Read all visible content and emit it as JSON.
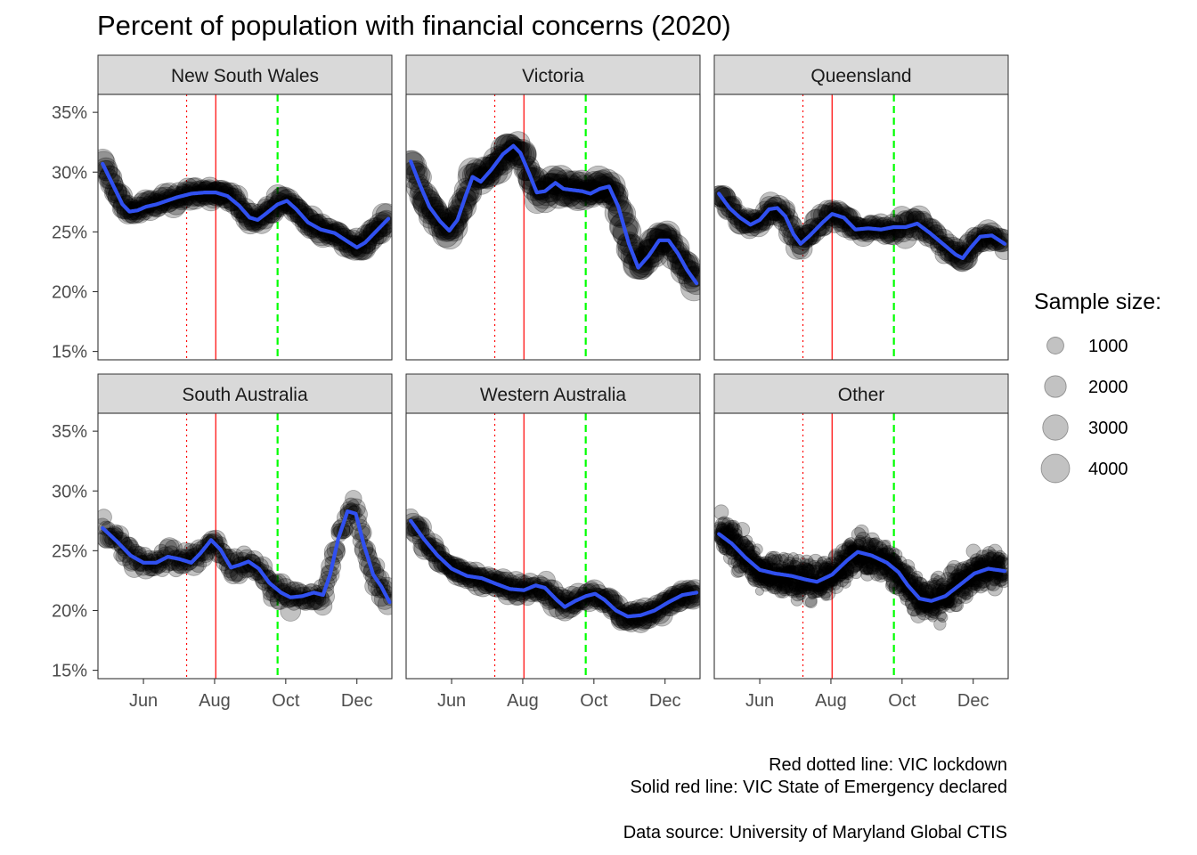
{
  "chart_data": {
    "type": "scatter",
    "title": "Percent of population with financial concerns (2020)",
    "xlabel": "",
    "ylabel": "",
    "x_ticks": [
      "Jun",
      "Aug",
      "Oct",
      "Dec"
    ],
    "x_tick_dates": [
      "2020-06-01",
      "2020-08-01",
      "2020-10-01",
      "2020-12-01"
    ],
    "xlim": [
      "2020-04-23",
      "2020-12-31"
    ],
    "y_ticks": [
      "15%",
      "20%",
      "25%",
      "30%",
      "35%"
    ],
    "y_tick_values": [
      15,
      20,
      25,
      30,
      35
    ],
    "ylim": [
      14.3,
      36.5
    ],
    "grid": false,
    "reference_lines": [
      {
        "date": "2020-07-08",
        "color": "#ff0000",
        "style": "dotted"
      },
      {
        "date": "2020-08-02",
        "color": "#ff0000",
        "style": "solid"
      },
      {
        "date": "2020-09-24",
        "color": "#00ff00",
        "style": "dashed"
      }
    ],
    "legend": {
      "title": "Sample size:",
      "position": "right",
      "entries": [
        {
          "label": "1000",
          "value": 1000
        },
        {
          "label": "2000",
          "value": 2000
        },
        {
          "label": "3000",
          "value": 3000
        },
        {
          "label": "4000",
          "value": 4000
        }
      ]
    },
    "captions": [
      "Red dotted line: VIC lockdown",
      "Solid red line: VIC State of Emergency declared",
      "Data source: University of Maryland Global CTIS"
    ],
    "point_color": "#000000",
    "smooth_color": "#3050f0",
    "panels": [
      {
        "name": "New South Wales",
        "smooth": [
          [
            "2020-04-27",
            30.7
          ],
          [
            "2020-05-06",
            28.9
          ],
          [
            "2020-05-14",
            27.3
          ],
          [
            "2020-05-20",
            26.7
          ],
          [
            "2020-05-27",
            26.8
          ],
          [
            "2020-06-03",
            27.1
          ],
          [
            "2020-06-12",
            27.3
          ],
          [
            "2020-06-21",
            27.6
          ],
          [
            "2020-06-30",
            27.9
          ],
          [
            "2020-07-12",
            28.2
          ],
          [
            "2020-07-24",
            28.3
          ],
          [
            "2020-08-02",
            28.3
          ],
          [
            "2020-08-12",
            28.0
          ],
          [
            "2020-08-22",
            27.2
          ],
          [
            "2020-08-31",
            26.2
          ],
          [
            "2020-09-07",
            26.0
          ],
          [
            "2020-09-15",
            26.6
          ],
          [
            "2020-09-24",
            27.3
          ],
          [
            "2020-10-02",
            27.6
          ],
          [
            "2020-10-10",
            26.9
          ],
          [
            "2020-10-20",
            25.8
          ],
          [
            "2020-10-31",
            25.2
          ],
          [
            "2020-11-12",
            24.9
          ],
          [
            "2020-11-23",
            24.2
          ],
          [
            "2020-12-01",
            23.7
          ],
          [
            "2020-12-08",
            24.1
          ],
          [
            "2020-12-15",
            24.8
          ],
          [
            "2020-12-22",
            25.5
          ],
          [
            "2020-12-28",
            26.1
          ]
        ],
        "amp": 1.0,
        "size_range": [
          900,
          2800
        ],
        "points_per_week": 7
      },
      {
        "name": "Victoria",
        "smooth": [
          [
            "2020-04-27",
            30.9
          ],
          [
            "2020-05-05",
            28.9
          ],
          [
            "2020-05-13",
            27.1
          ],
          [
            "2020-05-22",
            25.9
          ],
          [
            "2020-05-30",
            25.1
          ],
          [
            "2020-06-06",
            26.0
          ],
          [
            "2020-06-13",
            28.0
          ],
          [
            "2020-06-19",
            29.6
          ],
          [
            "2020-06-26",
            29.2
          ],
          [
            "2020-07-05",
            30.2
          ],
          [
            "2020-07-15",
            31.5
          ],
          [
            "2020-07-24",
            32.2
          ],
          [
            "2020-07-30",
            31.6
          ],
          [
            "2020-08-06",
            30.0
          ],
          [
            "2020-08-13",
            28.3
          ],
          [
            "2020-08-20",
            28.4
          ],
          [
            "2020-08-29",
            29.1
          ],
          [
            "2020-09-05",
            28.6
          ],
          [
            "2020-09-13",
            28.5
          ],
          [
            "2020-09-21",
            28.4
          ],
          [
            "2020-09-28",
            28.2
          ],
          [
            "2020-10-06",
            28.6
          ],
          [
            "2020-10-14",
            28.8
          ],
          [
            "2020-10-22",
            27.1
          ],
          [
            "2020-10-31",
            24.0
          ],
          [
            "2020-11-08",
            22.0
          ],
          [
            "2020-11-17",
            23.0
          ],
          [
            "2020-11-26",
            24.3
          ],
          [
            "2020-12-04",
            24.3
          ],
          [
            "2020-12-12",
            23.2
          ],
          [
            "2020-12-20",
            21.8
          ],
          [
            "2020-12-28",
            20.7
          ]
        ],
        "amp": 1.3,
        "size_range": [
          1200,
          4200
        ],
        "points_per_week": 7
      },
      {
        "name": "Queensland",
        "smooth": [
          [
            "2020-04-27",
            28.2
          ],
          [
            "2020-05-06",
            27.0
          ],
          [
            "2020-05-15",
            26.2
          ],
          [
            "2020-05-24",
            25.6
          ],
          [
            "2020-06-01",
            26.0
          ],
          [
            "2020-06-09",
            26.9
          ],
          [
            "2020-06-16",
            27.0
          ],
          [
            "2020-06-23",
            26.3
          ],
          [
            "2020-06-30",
            24.8
          ],
          [
            "2020-07-06",
            24.0
          ],
          [
            "2020-07-14",
            24.7
          ],
          [
            "2020-07-25",
            25.8
          ],
          [
            "2020-08-02",
            26.5
          ],
          [
            "2020-08-12",
            26.2
          ],
          [
            "2020-08-22",
            25.2
          ],
          [
            "2020-09-02",
            25.3
          ],
          [
            "2020-09-13",
            25.2
          ],
          [
            "2020-09-24",
            25.4
          ],
          [
            "2020-10-04",
            25.4
          ],
          [
            "2020-10-14",
            25.7
          ],
          [
            "2020-10-25",
            24.9
          ],
          [
            "2020-11-05",
            24.0
          ],
          [
            "2020-11-16",
            23.1
          ],
          [
            "2020-11-22",
            22.8
          ],
          [
            "2020-11-29",
            23.7
          ],
          [
            "2020-12-07",
            24.6
          ],
          [
            "2020-12-17",
            24.7
          ],
          [
            "2020-12-28",
            24.0
          ]
        ],
        "amp": 1.2,
        "size_range": [
          700,
          2500
        ],
        "points_per_week": 7
      },
      {
        "name": "South Australia",
        "smooth": [
          [
            "2020-04-27",
            26.9
          ],
          [
            "2020-05-09",
            25.8
          ],
          [
            "2020-05-21",
            24.6
          ],
          [
            "2020-06-01",
            24.0
          ],
          [
            "2020-06-12",
            24.0
          ],
          [
            "2020-06-22",
            24.5
          ],
          [
            "2020-07-02",
            24.3
          ],
          [
            "2020-07-12",
            24.0
          ],
          [
            "2020-07-20",
            24.8
          ],
          [
            "2020-07-29",
            25.9
          ],
          [
            "2020-08-06",
            25.1
          ],
          [
            "2020-08-15",
            23.6
          ],
          [
            "2020-08-22",
            23.8
          ],
          [
            "2020-08-30",
            24.1
          ],
          [
            "2020-09-08",
            23.5
          ],
          [
            "2020-09-17",
            22.3
          ],
          [
            "2020-09-27",
            21.5
          ],
          [
            "2020-10-05",
            21.1
          ],
          [
            "2020-10-15",
            21.2
          ],
          [
            "2020-10-25",
            21.5
          ],
          [
            "2020-11-02",
            21.3
          ],
          [
            "2020-11-08",
            23.0
          ],
          [
            "2020-11-15",
            26.0
          ],
          [
            "2020-11-23",
            28.3
          ],
          [
            "2020-11-30",
            28.1
          ],
          [
            "2020-12-07",
            25.5
          ],
          [
            "2020-12-15",
            23.0
          ],
          [
            "2020-12-22",
            22.0
          ],
          [
            "2020-12-29",
            20.7
          ]
        ],
        "amp": 1.6,
        "size_range": [
          400,
          1800
        ],
        "points_per_week": 7
      },
      {
        "name": "Western Australia",
        "smooth": [
          [
            "2020-04-27",
            27.5
          ],
          [
            "2020-05-08",
            26.0
          ],
          [
            "2020-05-20",
            24.6
          ],
          [
            "2020-06-01",
            23.5
          ],
          [
            "2020-06-14",
            22.9
          ],
          [
            "2020-06-27",
            22.7
          ],
          [
            "2020-07-10",
            22.2
          ],
          [
            "2020-07-21",
            21.8
          ],
          [
            "2020-08-02",
            21.7
          ],
          [
            "2020-08-12",
            22.1
          ],
          [
            "2020-08-20",
            21.9
          ],
          [
            "2020-08-30",
            20.9
          ],
          [
            "2020-09-06",
            20.3
          ],
          [
            "2020-09-15",
            20.8
          ],
          [
            "2020-09-24",
            21.2
          ],
          [
            "2020-10-02",
            21.4
          ],
          [
            "2020-10-10",
            20.9
          ],
          [
            "2020-10-20",
            20.0
          ],
          [
            "2020-10-30",
            19.5
          ],
          [
            "2020-11-10",
            19.6
          ],
          [
            "2020-11-22",
            20.0
          ],
          [
            "2020-12-04",
            20.7
          ],
          [
            "2020-12-16",
            21.3
          ],
          [
            "2020-12-28",
            21.5
          ]
        ],
        "amp": 1.1,
        "size_range": [
          800,
          2500
        ],
        "points_per_week": 7
      },
      {
        "name": "Other",
        "smooth": [
          [
            "2020-04-27",
            26.4
          ],
          [
            "2020-05-08",
            25.6
          ],
          [
            "2020-05-20",
            24.4
          ],
          [
            "2020-06-01",
            23.4
          ],
          [
            "2020-06-14",
            23.1
          ],
          [
            "2020-06-28",
            22.9
          ],
          [
            "2020-07-10",
            22.6
          ],
          [
            "2020-07-20",
            22.4
          ],
          [
            "2020-08-02",
            23.0
          ],
          [
            "2020-08-15",
            24.2
          ],
          [
            "2020-08-24",
            24.9
          ],
          [
            "2020-09-05",
            24.6
          ],
          [
            "2020-09-18",
            24.0
          ],
          [
            "2020-09-28",
            23.2
          ],
          [
            "2020-10-06",
            22.1
          ],
          [
            "2020-10-16",
            21.0
          ],
          [
            "2020-10-26",
            20.8
          ],
          [
            "2020-11-07",
            21.2
          ],
          [
            "2020-11-19",
            22.1
          ],
          [
            "2020-12-02",
            23.1
          ],
          [
            "2020-12-14",
            23.5
          ],
          [
            "2020-12-28",
            23.3
          ]
        ],
        "amp": 2.6,
        "size_range": [
          60,
          700
        ],
        "points_per_week": 30
      }
    ]
  }
}
